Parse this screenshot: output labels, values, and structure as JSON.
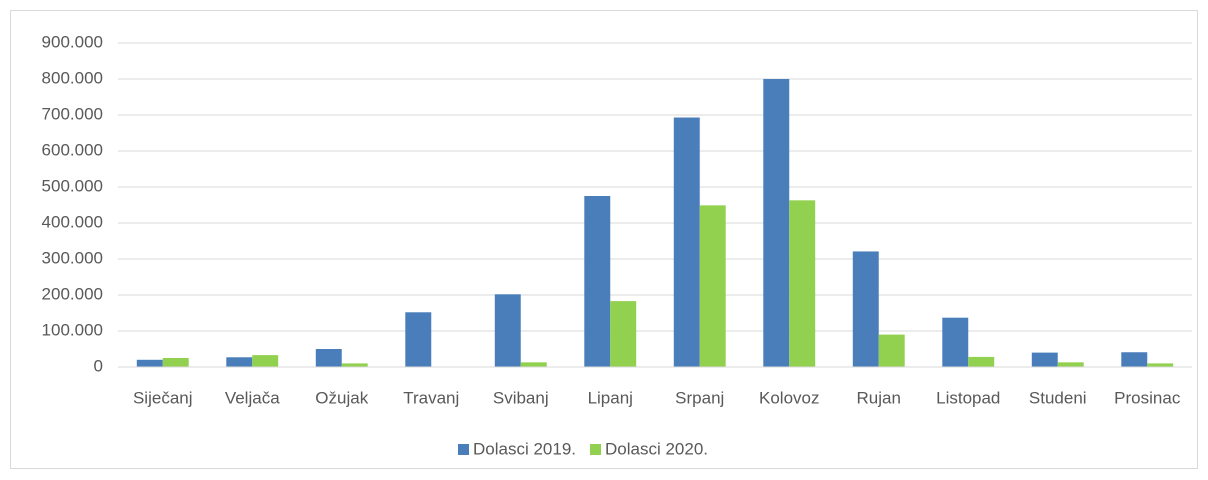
{
  "chart_data": {
    "type": "bar",
    "categories": [
      "Siječanj",
      "Veljača",
      "Ožujak",
      "Travanj",
      "Svibanj",
      "Lipanj",
      "Srpanj",
      "Kolovoz",
      "Rujan",
      "Listopad",
      "Studeni",
      "Prosinac"
    ],
    "series": [
      {
        "name": "Dolasci 2019.",
        "color": "#4a7ebb",
        "values": [
          20000,
          27000,
          50000,
          152000,
          202000,
          475000,
          693000,
          800000,
          321000,
          137000,
          40000,
          41000
        ]
      },
      {
        "name": "Dolasci 2020.",
        "color": "#92d050",
        "values": [
          25000,
          33000,
          10000,
          0,
          13000,
          183000,
          449000,
          463000,
          90000,
          28000,
          13000,
          10000
        ]
      }
    ],
    "ylim": [
      0,
      900000
    ],
    "yticks": [
      0,
      {
        "value": 100000,
        "label": "100.000"
      },
      {
        "value": 200000,
        "label": "200.000"
      },
      {
        "value": 300000,
        "label": "300.000"
      },
      {
        "value": 400000,
        "label": "400.000"
      },
      {
        "value": 500000,
        "label": "500.000"
      },
      {
        "value": 600000,
        "label": "600.000"
      },
      {
        "value": 700000,
        "label": "700.000"
      },
      {
        "value": 800000,
        "label": "800.000"
      },
      {
        "value": 900000,
        "label": "900.000"
      }
    ],
    "grid": true,
    "legend": "bottom"
  }
}
